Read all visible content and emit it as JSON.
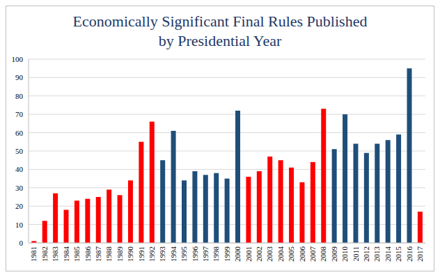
{
  "chart_data": {
    "type": "bar",
    "title": "Economically Significant Final Rules Published\nby Presidential Year",
    "categories": [
      "1981",
      "1982",
      "1983",
      "1984",
      "1985",
      "1986",
      "1987",
      "1988",
      "1989",
      "1990",
      "1991",
      "1992",
      "1993",
      "1994",
      "1995",
      "1996",
      "1997",
      "1998",
      "1999",
      "2000",
      "2001",
      "2002",
      "2003",
      "2004",
      "2005",
      "2006",
      "2007",
      "2008",
      "2009",
      "2010",
      "2011",
      "2012",
      "2013",
      "2014",
      "2015",
      "2016",
      "2017"
    ],
    "values": [
      1,
      12,
      27,
      18,
      23,
      24,
      25,
      29,
      26,
      34,
      55,
      66,
      45,
      61,
      34,
      39,
      37,
      38,
      35,
      72,
      36,
      39,
      47,
      45,
      41,
      33,
      44,
      73,
      51,
      70,
      54,
      49,
      54,
      56,
      59,
      95,
      17
    ],
    "colors": [
      "#ff0000",
      "#ff0000",
      "#ff0000",
      "#ff0000",
      "#ff0000",
      "#ff0000",
      "#ff0000",
      "#ff0000",
      "#ff0000",
      "#ff0000",
      "#ff0000",
      "#ff0000",
      "#1f4e79",
      "#1f4e79",
      "#1f4e79",
      "#1f4e79",
      "#1f4e79",
      "#1f4e79",
      "#1f4e79",
      "#1f4e79",
      "#ff0000",
      "#ff0000",
      "#ff0000",
      "#ff0000",
      "#ff0000",
      "#ff0000",
      "#ff0000",
      "#ff0000",
      "#1f4e79",
      "#1f4e79",
      "#1f4e79",
      "#1f4e79",
      "#1f4e79",
      "#1f4e79",
      "#1f4e79",
      "#1f4e79",
      "#ff0000"
    ],
    "ylim": [
      0,
      100
    ],
    "yticks": [
      0,
      10,
      20,
      30,
      40,
      50,
      60,
      70,
      80,
      90,
      100
    ],
    "grid": true
  }
}
